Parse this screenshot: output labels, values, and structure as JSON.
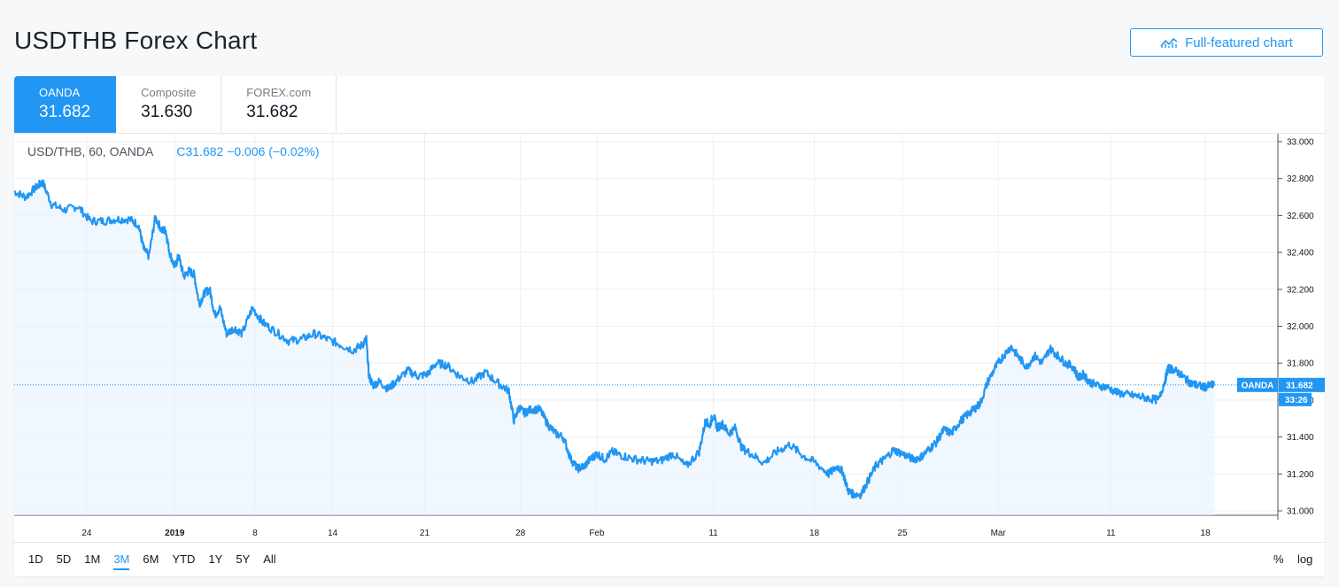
{
  "page": {
    "title": "USDTHB Forex Chart",
    "full_chart_label": "Full-featured chart"
  },
  "tabs": [
    {
      "name": "OANDA",
      "value": "31.682",
      "active": true
    },
    {
      "name": "Composite",
      "value": "31.630",
      "active": false
    },
    {
      "name": "FOREX.com",
      "value": "31.682",
      "active": false
    }
  ],
  "legend": {
    "symbol": "USD/THB, 60, OANDA",
    "close": "C31.682",
    "change": "−0.006 (−0.02%)"
  },
  "price_label": {
    "source": "OANDA",
    "price": "31.682",
    "countdown": "33:26"
  },
  "ranges": [
    "1D",
    "5D",
    "1M",
    "3M",
    "6M",
    "YTD",
    "1Y",
    "5Y",
    "All"
  ],
  "active_range": "3M",
  "scale_buttons": {
    "percent": "%",
    "log": "log"
  },
  "colors": {
    "line": "#2196f3",
    "fill": "#e8f2fd",
    "grid": "#eceef2",
    "text": "#131722"
  },
  "chart_data": {
    "type": "line",
    "ylim": [
      30.99,
      33.06
    ],
    "yticks": [
      "33.000",
      "32.800",
      "32.600",
      "32.400",
      "32.200",
      "32.000",
      "31.800",
      "31.600",
      "31.400",
      "31.200",
      "31.000"
    ],
    "xtick_labels": [
      "24",
      "2019",
      "8",
      "14",
      "21",
      "28",
      "Feb",
      "11",
      "18",
      "25",
      "Mar",
      "11",
      "18"
    ],
    "xtick_pos": [
      2.2,
      9.0,
      15.2,
      21.2,
      28.3,
      35.7,
      41.6,
      50.6,
      58.4,
      65.2,
      72.6,
      81.3,
      88.6
    ],
    "xlim": [
      -3.4,
      94.2
    ],
    "last_value": 31.682,
    "series": [
      {
        "x": [
          -3.4,
          -2.5,
          -1.6,
          -1.2,
          -0.5,
          0.5,
          1.5,
          2.5,
          3.5,
          4.5,
          5.5,
          6.2,
          6.6,
          7.0,
          7.5,
          8.0,
          8.3,
          8.6,
          9.0,
          9.3,
          9.7,
          10.1,
          10.5,
          10.9,
          11.3,
          11.7,
          12.1,
          12.5,
          13.0,
          13.6,
          14.2,
          15.0,
          15.8,
          16.8,
          17.8,
          18.8,
          19.8,
          20.8,
          21.8,
          22.8,
          23.5,
          23.8,
          24.0,
          24.3,
          24.8,
          25.5,
          26.2,
          27.0,
          27.8,
          28.5,
          29.2,
          30.0,
          31.0,
          32.0,
          33.0,
          34.0,
          34.8,
          35.2,
          35.6,
          36.0,
          36.5,
          37.2,
          37.8,
          38.4,
          39.0,
          39.6,
          40.1,
          40.6,
          41.1,
          41.6,
          42.2,
          42.8,
          43.5,
          44.5,
          45.5,
          46.5,
          47.5,
          48.5,
          49.5,
          50.0,
          50.3,
          50.6,
          50.9,
          51.3,
          51.8,
          52.3,
          52.8,
          53.5,
          54.5,
          55.5,
          56.5,
          57.5,
          58.5,
          59.5,
          60.2,
          60.6,
          61.0,
          61.4,
          62.0,
          62.6,
          63.2,
          63.8,
          64.5,
          65.2,
          66.0,
          66.6,
          67.2,
          67.8,
          68.4,
          69.0,
          69.6,
          70.2,
          70.7,
          71.2,
          71.8,
          72.4,
          73.0,
          73.6,
          74.2,
          74.8,
          75.4,
          76.0,
          76.6,
          77.2,
          77.8,
          78.4,
          78.8,
          79.2,
          79.6,
          80.2,
          81.0,
          81.8,
          82.6,
          83.4,
          84.2,
          85.0,
          85.5,
          85.7,
          86.0,
          86.5,
          87.0,
          87.5,
          88.0,
          88.5,
          89.0,
          89.3
        ],
        "y": [
          32.73,
          32.7,
          32.76,
          32.78,
          32.66,
          32.63,
          32.65,
          32.57,
          32.57,
          32.58,
          32.58,
          32.55,
          32.42,
          32.38,
          32.59,
          32.52,
          32.52,
          32.4,
          32.32,
          32.38,
          32.27,
          32.3,
          32.28,
          32.12,
          32.18,
          32.2,
          32.06,
          32.1,
          31.96,
          31.99,
          31.96,
          32.1,
          32.02,
          31.97,
          31.92,
          31.93,
          31.96,
          31.93,
          31.9,
          31.87,
          31.9,
          31.93,
          31.73,
          31.68,
          31.7,
          31.66,
          31.71,
          31.76,
          31.73,
          31.74,
          31.8,
          31.79,
          31.73,
          31.7,
          31.75,
          31.69,
          31.65,
          31.49,
          31.56,
          31.53,
          31.55,
          31.55,
          31.47,
          31.42,
          31.4,
          31.28,
          31.23,
          31.24,
          31.28,
          31.31,
          31.28,
          31.32,
          31.3,
          31.28,
          31.27,
          31.27,
          31.31,
          31.24,
          31.32,
          31.49,
          31.46,
          31.52,
          31.45,
          31.47,
          31.42,
          31.45,
          31.34,
          31.31,
          31.26,
          31.32,
          31.36,
          31.3,
          31.26,
          31.2,
          31.24,
          31.21,
          31.11,
          31.09,
          31.09,
          31.17,
          31.25,
          31.28,
          31.33,
          31.31,
          31.28,
          31.29,
          31.33,
          31.37,
          31.44,
          31.42,
          31.48,
          31.52,
          31.55,
          31.58,
          31.7,
          31.78,
          31.84,
          31.89,
          31.83,
          31.78,
          31.84,
          31.8,
          31.88,
          31.84,
          31.8,
          31.78,
          31.72,
          31.74,
          31.7,
          31.68,
          31.67,
          31.64,
          31.63,
          31.62,
          31.61,
          31.6,
          31.71,
          31.77,
          31.77,
          31.75,
          31.72,
          31.69,
          31.68,
          31.67,
          31.68,
          31.682
        ]
      }
    ]
  }
}
